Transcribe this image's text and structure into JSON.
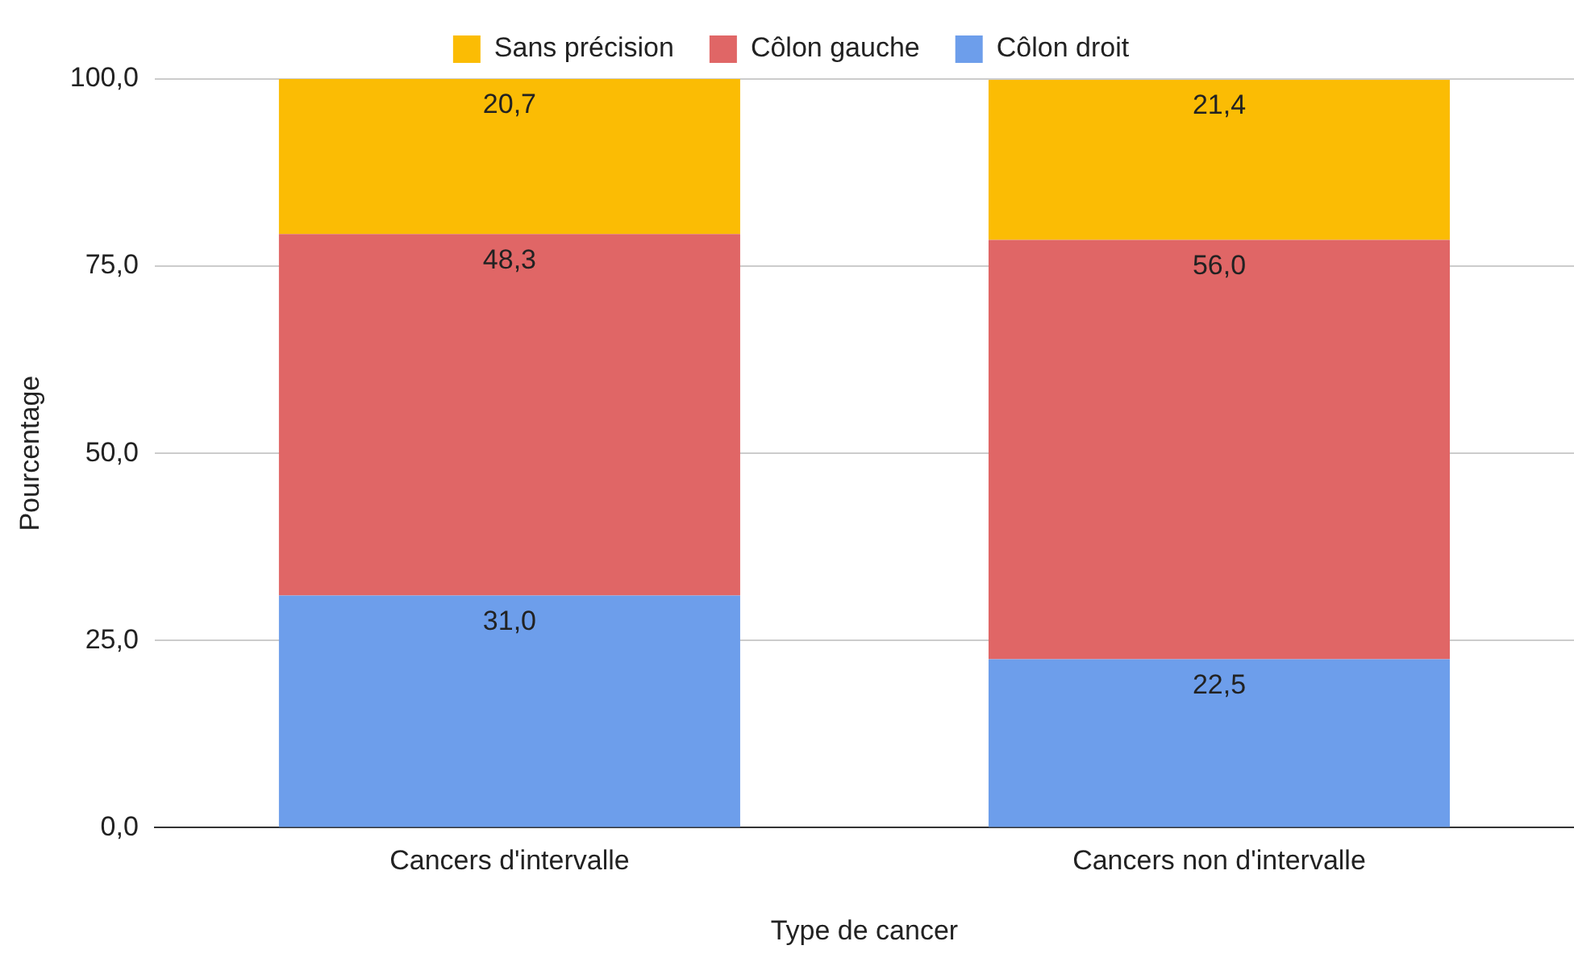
{
  "chart_data": {
    "type": "bar",
    "stacked": true,
    "xlabel": "Type de cancer",
    "ylabel": "Pourcentage",
    "categories": [
      "Cancers d'intervalle",
      "Cancers non d'intervalle"
    ],
    "series": [
      {
        "name": "Côlon droit",
        "color": "#6d9eeb",
        "values": [
          31.0,
          22.5
        ],
        "value_labels": [
          "31,0",
          "22,5"
        ]
      },
      {
        "name": "Côlon gauche",
        "color": "#e06666",
        "values": [
          48.3,
          56.0
        ],
        "value_labels": [
          "48,3",
          "56,0"
        ]
      },
      {
        "name": "Sans précision",
        "color": "#fbbc04",
        "values": [
          20.7,
          21.4
        ],
        "value_labels": [
          "20,7",
          "21,4"
        ]
      }
    ],
    "ylim": [
      0,
      100
    ],
    "yticks": [
      {
        "value": 0,
        "label": "0,0"
      },
      {
        "value": 25,
        "label": "25,0"
      },
      {
        "value": 50,
        "label": "50,0"
      },
      {
        "value": 75,
        "label": "75,0"
      },
      {
        "value": 100,
        "label": "100,0"
      }
    ],
    "grid": "y",
    "legend": "top"
  }
}
